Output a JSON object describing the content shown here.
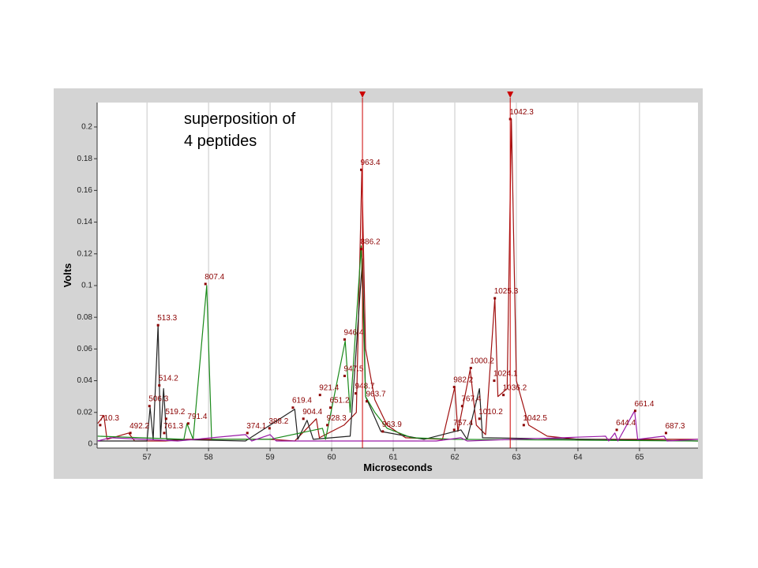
{
  "chart_data": {
    "type": "line",
    "annotation": [
      "superposition of",
      "4 peptides"
    ],
    "x_label": "Microseconds",
    "y_label": "Volts",
    "xlim": [
      56.19,
      65.95
    ],
    "ylim": [
      -0.0025,
      0.2154
    ],
    "xticks": [
      57,
      58,
      59,
      60,
      61,
      62,
      63,
      64,
      65
    ],
    "yticks": [
      0,
      0.02,
      0.04,
      0.06,
      0.08,
      0.1,
      0.12,
      0.14,
      0.16,
      0.18,
      0.2
    ],
    "grid": "x",
    "cursors": [
      60.5,
      62.9
    ],
    "cursor_color": "#cc0000",
    "label_color": "#8b0000",
    "series": [
      {
        "color": "#a01010",
        "x": [
          56.2,
          56.3,
          56.35,
          56.7,
          56.8,
          57.3,
          57.65,
          59.0,
          59.4,
          59.75,
          59.8,
          60.2,
          60.4,
          60.49,
          60.55,
          60.7,
          60.9,
          61.2,
          61.8,
          62.0,
          62.05,
          62.25,
          62.35,
          62.5,
          62.65,
          62.7,
          62.85,
          62.92,
          63.0,
          63.2,
          63.5,
          64.0,
          65.0,
          65.95
        ],
        "values": [
          0.013,
          0.018,
          0.003,
          0.007,
          0.002,
          0.002,
          0.003,
          0.003,
          0.002,
          0.016,
          0.004,
          0.012,
          0.02,
          0.173,
          0.06,
          0.028,
          0.012,
          0.004,
          0.003,
          0.036,
          0.008,
          0.047,
          0.012,
          0.006,
          0.092,
          0.03,
          0.035,
          0.205,
          0.04,
          0.012,
          0.005,
          0.003,
          0.003,
          0.003
        ]
      },
      {
        "color": "#222222",
        "x": [
          56.2,
          57.0,
          57.05,
          57.1,
          57.18,
          57.22,
          57.27,
          57.32,
          58.6,
          59.4,
          59.45,
          59.6,
          59.7,
          60.3,
          60.5,
          60.55,
          60.8,
          61.5,
          62.1,
          62.2,
          62.4,
          62.45,
          65.95
        ],
        "values": [
          0.002,
          0.002,
          0.023,
          0.003,
          0.075,
          0.004,
          0.035,
          0.003,
          0.002,
          0.022,
          0.003,
          0.015,
          0.003,
          0.005,
          0.117,
          0.03,
          0.008,
          0.003,
          0.009,
          0.003,
          0.035,
          0.004,
          0.002
        ]
      },
      {
        "color": "#1a8a1a",
        "x": [
          56.2,
          57.6,
          57.65,
          57.75,
          57.97,
          58.05,
          59.0,
          59.85,
          59.9,
          60.22,
          60.3,
          60.48,
          60.55,
          60.7,
          60.9,
          61.3,
          62.0,
          65.95
        ],
        "values": [
          0.005,
          0.003,
          0.013,
          0.003,
          0.1,
          0.003,
          0.003,
          0.01,
          0.003,
          0.065,
          0.02,
          0.125,
          0.03,
          0.02,
          0.01,
          0.004,
          0.003,
          0.002
        ]
      },
      {
        "color": "#9a1aa8",
        "x": [
          56.2,
          56.4,
          57.5,
          58.6,
          58.7,
          59.0,
          59.1,
          61.7,
          62.1,
          62.2,
          64.45,
          64.5,
          64.6,
          64.65,
          64.92,
          64.97,
          65.4,
          65.45,
          65.95
        ],
        "values": [
          0.002,
          0.004,
          0.002,
          0.006,
          0.002,
          0.006,
          0.002,
          0.002,
          0.004,
          0.002,
          0.005,
          0.002,
          0.007,
          0.002,
          0.021,
          0.003,
          0.005,
          0.002,
          0.003
        ]
      }
    ],
    "peak_labels": [
      {
        "label": "710.3",
        "x": 56.24,
        "y": 0.012
      },
      {
        "label": "492.2",
        "x": 56.73,
        "y": 0.007
      },
      {
        "label": "513.3",
        "x": 57.18,
        "y": 0.075
      },
      {
        "label": "514.2",
        "x": 57.2,
        "y": 0.037
      },
      {
        "label": "506.3",
        "x": 57.04,
        "y": 0.024
      },
      {
        "label": "519.2",
        "x": 57.31,
        "y": 0.016
      },
      {
        "label": "761.3",
        "x": 57.28,
        "y": 0.007
      },
      {
        "label": "791.4",
        "x": 57.67,
        "y": 0.013
      },
      {
        "label": "807.4",
        "x": 57.95,
        "y": 0.101
      },
      {
        "label": "374.1",
        "x": 58.63,
        "y": 0.007
      },
      {
        "label": "388.2",
        "x": 58.99,
        "y": 0.01
      },
      {
        "label": "619.4",
        "x": 59.37,
        "y": 0.023
      },
      {
        "label": "904.4",
        "x": 59.54,
        "y": 0.016
      },
      {
        "label": "921.4",
        "x": 59.81,
        "y": 0.031
      },
      {
        "label": "651.2",
        "x": 59.98,
        "y": 0.023
      },
      {
        "label": "928.3",
        "x": 59.93,
        "y": 0.012
      },
      {
        "label": "946.4",
        "x": 60.21,
        "y": 0.066
      },
      {
        "label": "947.5",
        "x": 60.21,
        "y": 0.043
      },
      {
        "label": "948.7",
        "x": 60.39,
        "y": 0.032
      },
      {
        "label": "963.4",
        "x": 60.48,
        "y": 0.173
      },
      {
        "label": "886.2",
        "x": 60.48,
        "y": 0.123
      },
      {
        "label": "963.7",
        "x": 60.57,
        "y": 0.027
      },
      {
        "label": "963.9",
        "x": 60.83,
        "y": 0.008
      },
      {
        "label": "982.2",
        "x": 61.99,
        "y": 0.036
      },
      {
        "label": "757.4",
        "x": 61.99,
        "y": 0.009
      },
      {
        "label": "767.4",
        "x": 62.12,
        "y": 0.024
      },
      {
        "label": "1000.2",
        "x": 62.26,
        "y": 0.048
      },
      {
        "label": "1010.2",
        "x": 62.4,
        "y": 0.016
      },
      {
        "label": "1024.1",
        "x": 62.64,
        "y": 0.04
      },
      {
        "label": "1025.3",
        "x": 62.65,
        "y": 0.092
      },
      {
        "label": "1036.2",
        "x": 62.79,
        "y": 0.031
      },
      {
        "label": "1042.3",
        "x": 62.9,
        "y": 0.205
      },
      {
        "label": "1042.5",
        "x": 63.12,
        "y": 0.012
      },
      {
        "label": "644.4",
        "x": 64.63,
        "y": 0.009
      },
      {
        "label": "661.4",
        "x": 64.93,
        "y": 0.021
      },
      {
        "label": "687.3",
        "x": 65.43,
        "y": 0.007
      }
    ]
  }
}
